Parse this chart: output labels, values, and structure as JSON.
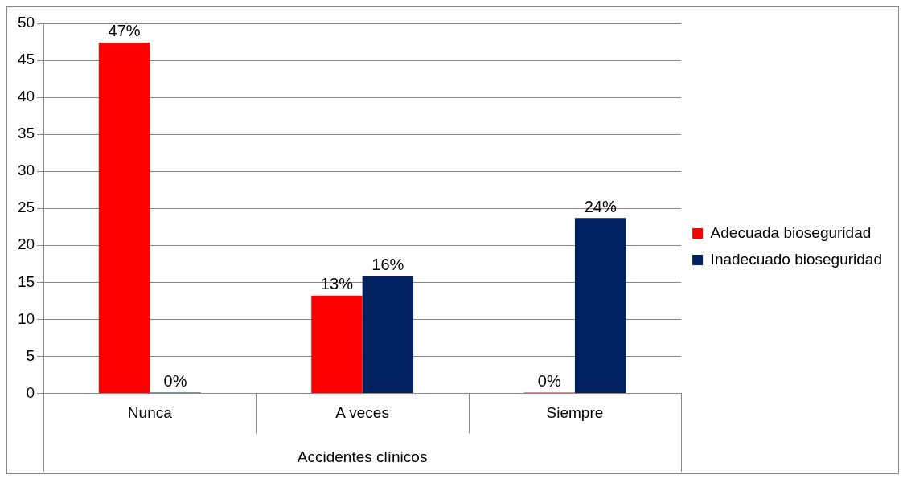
{
  "chart_data": {
    "type": "bar",
    "xlabel": "Accidentes clínicos",
    "categories": [
      "Nunca",
      "A veces",
      "Siempre"
    ],
    "series": [
      {
        "name": "Adecuada bioseguridad",
        "color": "#ff0000",
        "values": [
          47.4,
          13.2,
          0
        ],
        "value_labels": [
          "47%",
          "13%",
          "0%"
        ]
      },
      {
        "name": "Inadecuado bioseguridad",
        "color": "#002060",
        "values": [
          0,
          15.8,
          23.7
        ],
        "value_labels": [
          "0%",
          "16%",
          "24%"
        ]
      }
    ],
    "ylim": [
      0,
      50
    ],
    "yticks": [
      0,
      5,
      10,
      15,
      20,
      25,
      30,
      35,
      40,
      45,
      50
    ],
    "grid": "y",
    "legend": "right"
  }
}
